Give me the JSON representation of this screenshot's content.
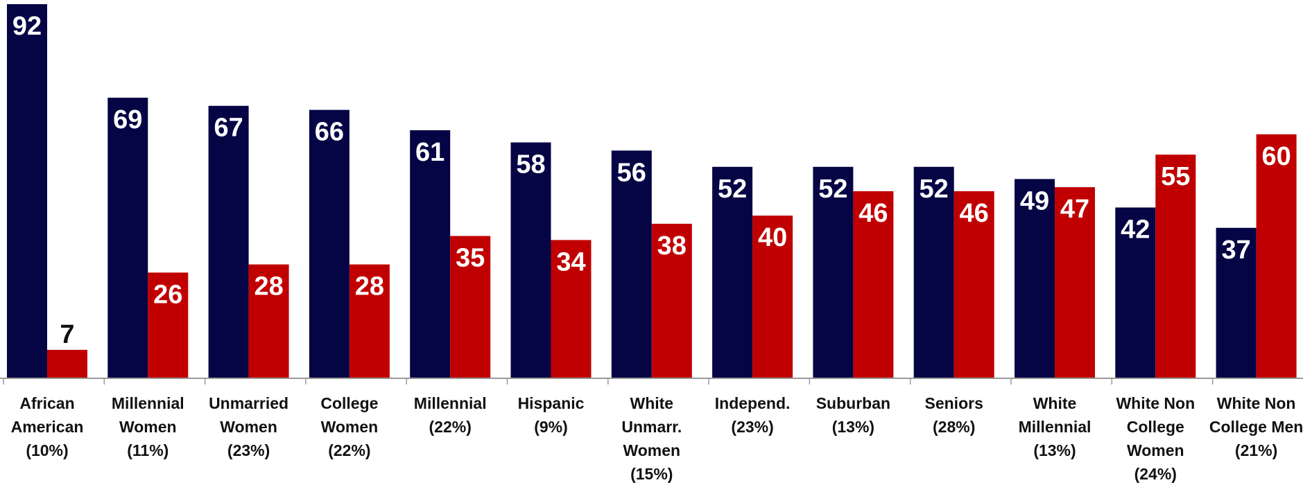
{
  "chart_data": {
    "type": "bar",
    "title": "",
    "xlabel": "",
    "ylabel": "",
    "ylim": [
      0,
      92
    ],
    "grid": false,
    "legend": "none",
    "colors": {
      "series_a": "#050545",
      "series_b": "#C00000"
    },
    "categories": [
      [
        "African",
        "American",
        "(10%)"
      ],
      [
        "Millennial",
        "Women",
        "(11%)"
      ],
      [
        "Unmarried",
        "Women",
        "(23%)"
      ],
      [
        "College",
        "Women",
        "(22%)"
      ],
      [
        "Millennial",
        "(22%)"
      ],
      [
        "Hispanic",
        "(9%)"
      ],
      [
        "White",
        "Unmarr.",
        "Women",
        "(15%)"
      ],
      [
        "Independ.",
        "(23%)"
      ],
      [
        "Suburban",
        "(13%)"
      ],
      [
        "Seniors",
        "(28%)"
      ],
      [
        "White",
        "Millennial",
        "(13%)"
      ],
      [
        "White Non",
        "College",
        "Women",
        "(24%)"
      ],
      [
        "White Non",
        "College Men",
        "(21%)"
      ]
    ],
    "series": [
      {
        "values": [
          92,
          69,
          67,
          66,
          61,
          58,
          56,
          52,
          52,
          52,
          49,
          42,
          37
        ]
      },
      {
        "values": [
          7,
          26,
          28,
          28,
          35,
          34,
          38,
          40,
          46,
          46,
          47,
          55,
          60
        ]
      }
    ]
  }
}
